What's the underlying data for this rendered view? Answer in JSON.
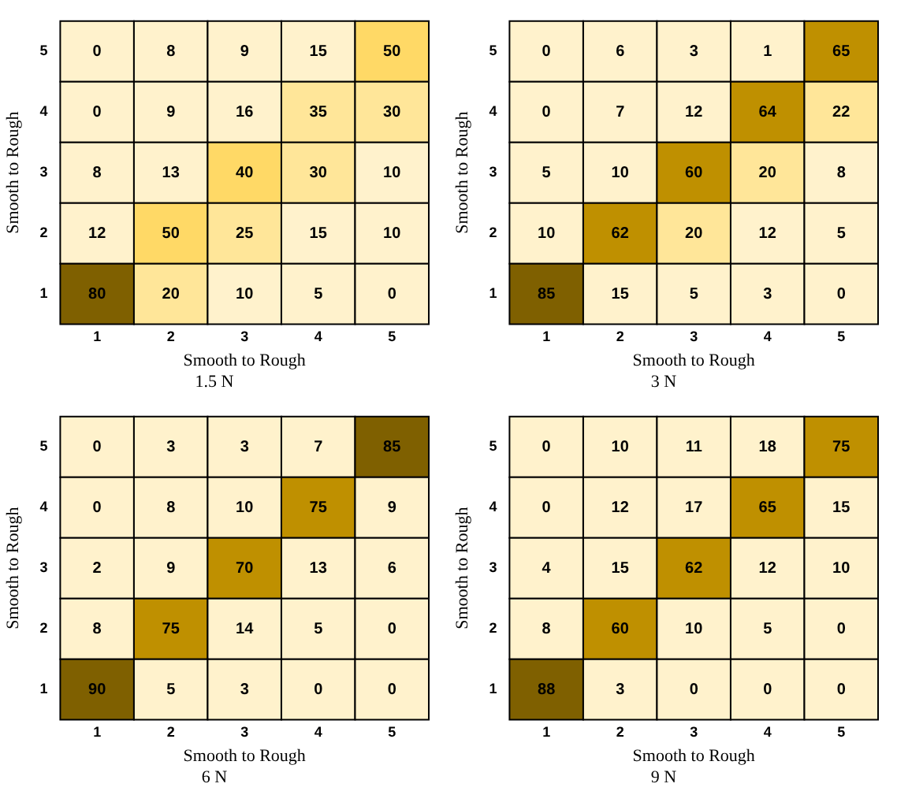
{
  "chart_data": [
    {
      "type": "heatmap",
      "title": "1.5 N",
      "xlabel": "Smooth to Rough",
      "ylabel": "Smooth to Rough",
      "categories": [
        "1",
        "2",
        "3",
        "4",
        "5"
      ],
      "y_categories": [
        "5",
        "4",
        "3",
        "2",
        "1"
      ],
      "data_labels": true,
      "cells": [
        [
          0,
          8,
          9,
          15,
          50
        ],
        [
          0,
          9,
          16,
          35,
          30
        ],
        [
          8,
          13,
          40,
          30,
          10
        ],
        [
          12,
          50,
          25,
          15,
          10
        ],
        [
          80,
          20,
          10,
          5,
          0
        ]
      ]
    },
    {
      "type": "heatmap",
      "title": "3 N",
      "xlabel": "Smooth to Rough",
      "ylabel": "Smooth to Rough",
      "categories": [
        "1",
        "2",
        "3",
        "4",
        "5"
      ],
      "y_categories": [
        "5",
        "4",
        "3",
        "2",
        "1"
      ],
      "data_labels": true,
      "cells": [
        [
          0,
          6,
          3,
          1,
          65
        ],
        [
          0,
          7,
          12,
          64,
          22
        ],
        [
          5,
          10,
          60,
          20,
          8
        ],
        [
          10,
          62,
          20,
          12,
          5
        ],
        [
          85,
          15,
          5,
          3,
          0
        ]
      ]
    },
    {
      "type": "heatmap",
      "title": "6 N",
      "xlabel": "Smooth to Rough",
      "ylabel": "Smooth to Rough",
      "categories": [
        "1",
        "2",
        "3",
        "4",
        "5"
      ],
      "y_categories": [
        "5",
        "4",
        "3",
        "2",
        "1"
      ],
      "data_labels": true,
      "cells": [
        [
          0,
          3,
          3,
          7,
          85
        ],
        [
          0,
          8,
          10,
          75,
          9
        ],
        [
          2,
          9,
          70,
          13,
          6
        ],
        [
          8,
          75,
          14,
          5,
          0
        ],
        [
          90,
          5,
          3,
          0,
          0
        ]
      ]
    },
    {
      "type": "heatmap",
      "title": "9 N",
      "xlabel": "Smooth to Rough",
      "ylabel": "Smooth to Rough",
      "categories": [
        "1",
        "2",
        "3",
        "4",
        "5"
      ],
      "y_categories": [
        "5",
        "4",
        "3",
        "2",
        "1"
      ],
      "data_labels": true,
      "cells": [
        [
          0,
          10,
          11,
          18,
          75
        ],
        [
          0,
          12,
          17,
          65,
          15
        ],
        [
          4,
          15,
          62,
          12,
          10
        ],
        [
          8,
          60,
          10,
          5,
          0
        ],
        [
          88,
          3,
          0,
          0,
          0
        ]
      ]
    }
  ]
}
